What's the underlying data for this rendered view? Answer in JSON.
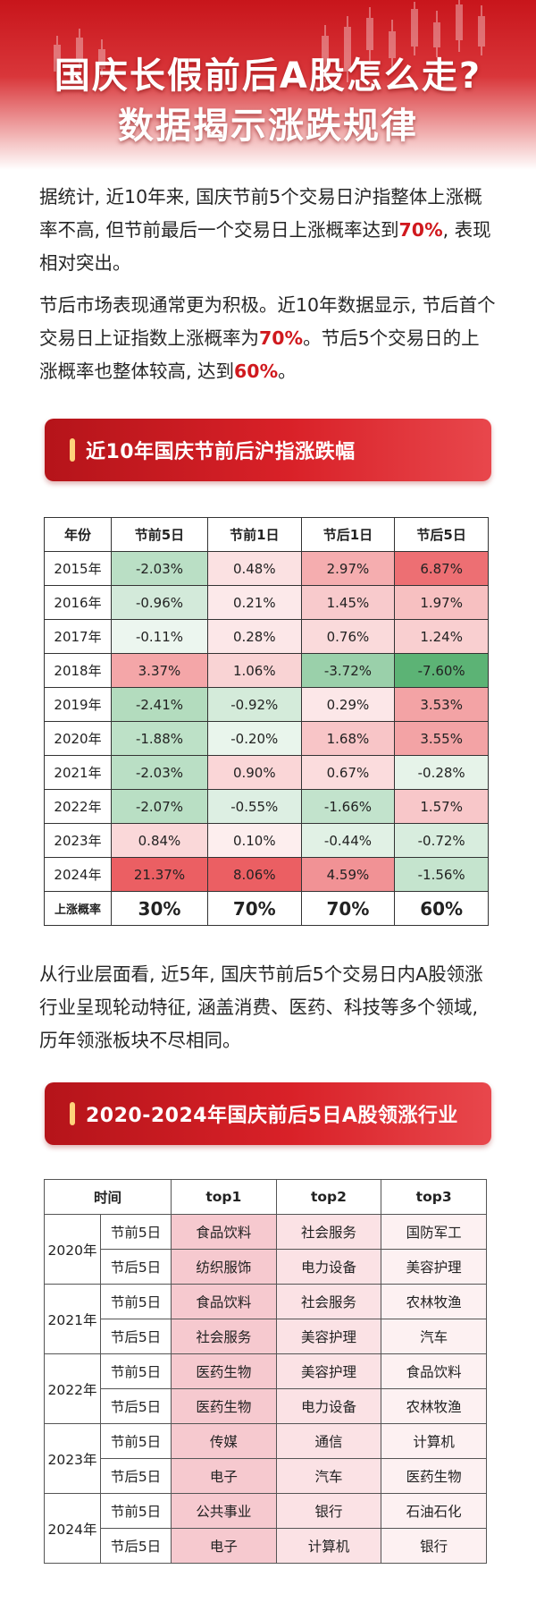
{
  "title": {
    "line1": "国庆长假前后A股怎么走?",
    "line2": "数据揭示涨跌规律"
  },
  "intro": {
    "p1_a": "据统计, 近10年来, 国庆节前5个交易日沪指整体上涨概率不高, 但节前最后一个交易日上涨概率达到",
    "p1_hl": "70%",
    "p1_b": ", 表现相对突出。",
    "p2_a": "节后市场表现通常更为积极。近10年数据显示, 节后首个交易日上证指数上涨概率为",
    "p2_hl1": "70%",
    "p2_b": "。节后5个交易日的上涨概率也整体较高, 达到",
    "p2_hl2": "60%",
    "p2_c": "。"
  },
  "section1": {
    "banner": "近10年国庆节前后沪指涨跌幅",
    "headers": [
      "年份",
      "节前5日",
      "节前1日",
      "节后1日",
      "节后5日"
    ],
    "rows": [
      {
        "year": "2015年",
        "values": [
          "-2.03%",
          "0.48%",
          "2.97%",
          "6.87%"
        ]
      },
      {
        "year": "2016年",
        "values": [
          "-0.96%",
          "0.21%",
          "1.45%",
          "1.97%"
        ]
      },
      {
        "year": "2017年",
        "values": [
          "-0.11%",
          "0.28%",
          "0.76%",
          "1.24%"
        ]
      },
      {
        "year": "2018年",
        "values": [
          "3.37%",
          "1.06%",
          "-3.72%",
          "-7.60%"
        ]
      },
      {
        "year": "2019年",
        "values": [
          "-2.41%",
          "-0.92%",
          "0.29%",
          "3.53%"
        ]
      },
      {
        "year": "2020年",
        "values": [
          "-1.88%",
          "-0.20%",
          "1.68%",
          "3.55%"
        ]
      },
      {
        "year": "2021年",
        "values": [
          "-2.03%",
          "0.90%",
          "0.67%",
          "-0.28%"
        ]
      },
      {
        "year": "2022年",
        "values": [
          "-2.07%",
          "-0.55%",
          "-1.66%",
          "1.57%"
        ]
      },
      {
        "year": "2023年",
        "values": [
          "0.84%",
          "0.10%",
          "-0.44%",
          "-0.72%"
        ]
      },
      {
        "year": "2024年",
        "values": [
          "21.37%",
          "8.06%",
          "4.59%",
          "-1.56%"
        ]
      }
    ],
    "prob_label": "上涨概率",
    "probs": [
      "30%",
      "70%",
      "70%",
      "60%"
    ],
    "colors": {
      "up": "#e63a3f",
      "down": "#2e9e4e"
    }
  },
  "para3": "从行业层面看, 近5年, 国庆节前后5个交易日内A股领涨行业呈现轮动特征, 涵盖消费、医药、科技等多个领域, 历年领涨板块不尽相同。",
  "section2": {
    "banner": "2020-2024年国庆前后5日A股领涨行业",
    "headers": [
      "时间",
      "top1",
      "top2",
      "top3"
    ],
    "years": [
      {
        "year": "2020年",
        "rows": [
          {
            "period": "节前5日",
            "top": [
              "食品饮料",
              "社会服务",
              "国防军工"
            ]
          },
          {
            "period": "节后5日",
            "top": [
              "纺织服饰",
              "电力设备",
              "美容护理"
            ]
          }
        ]
      },
      {
        "year": "2021年",
        "rows": [
          {
            "period": "节前5日",
            "top": [
              "食品饮料",
              "社会服务",
              "农林牧渔"
            ]
          },
          {
            "period": "节后5日",
            "top": [
              "社会服务",
              "美容护理",
              "汽车"
            ]
          }
        ]
      },
      {
        "year": "2022年",
        "rows": [
          {
            "period": "节前5日",
            "top": [
              "医药生物",
              "美容护理",
              "食品饮料"
            ]
          },
          {
            "period": "节后5日",
            "top": [
              "医药生物",
              "电力设备",
              "农林牧渔"
            ]
          }
        ]
      },
      {
        "year": "2023年",
        "rows": [
          {
            "period": "节前5日",
            "top": [
              "传媒",
              "通信",
              "计算机"
            ]
          },
          {
            "period": "节后5日",
            "top": [
              "电子",
              "汽车",
              "医药生物"
            ]
          }
        ]
      },
      {
        "year": "2024年",
        "rows": [
          {
            "period": "节前5日",
            "top": [
              "公共事业",
              "银行",
              "石油石化"
            ]
          },
          {
            "period": "节后5日",
            "top": [
              "电子",
              "计算机",
              "银行"
            ]
          }
        ]
      }
    ]
  }
}
